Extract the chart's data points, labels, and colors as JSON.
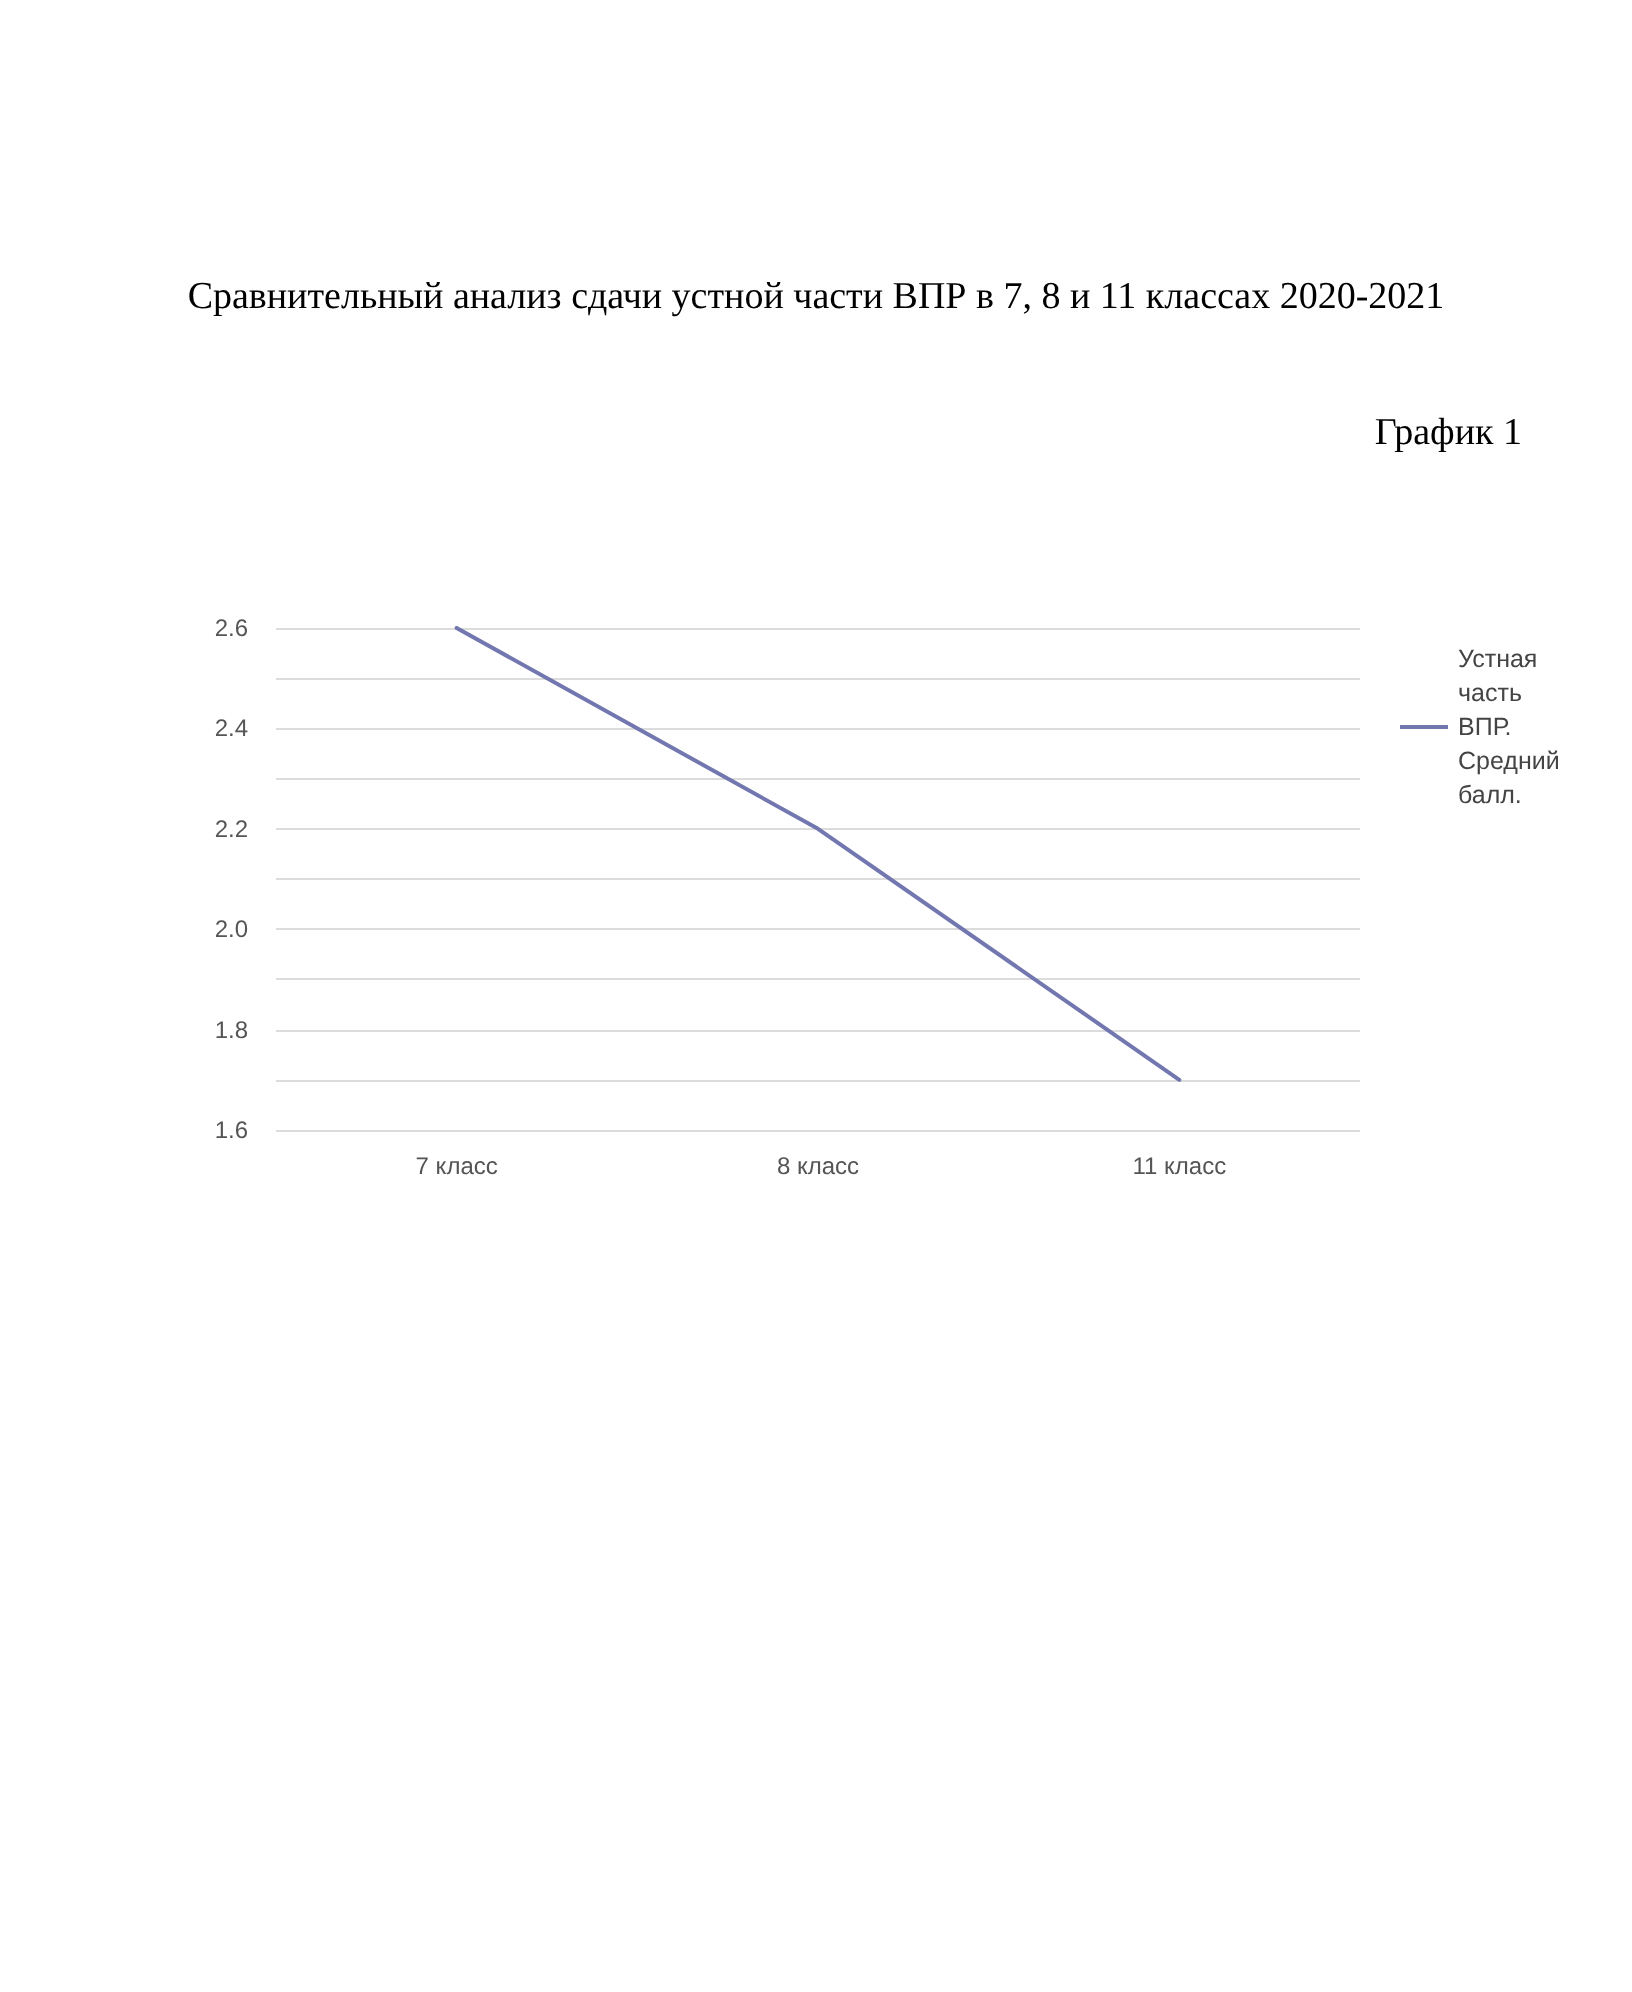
{
  "chart_data": {
    "type": "line",
    "title": "Сравнительный анализ сдачи устной части ВПР в 7, 8 и 11 классах 2020-2021",
    "subtitle": "График 1",
    "categories": [
      "7 класс",
      "8 класс",
      "11 класс"
    ],
    "series": [
      {
        "name": "Устная часть ВПР. Средний балл.",
        "color": "#7277b0",
        "values": [
          2.6,
          2.2,
          1.7
        ]
      }
    ],
    "ylim": [
      1.6,
      2.6
    ],
    "yticks": [
      1.6,
      {
        "value": 1.7,
        "label": null
      },
      1.8,
      {
        "value": 1.9,
        "label": null
      },
      {
        "value": 2.0,
        "label": "2.0"
      },
      {
        "value": 2.1,
        "label": null
      },
      2.2,
      {
        "value": 2.3,
        "label": null
      },
      2.4,
      {
        "value": 2.5,
        "label": null
      },
      2.6
    ],
    "grid": "y",
    "legend": "right",
    "marker": "none",
    "line_style": "solid"
  }
}
